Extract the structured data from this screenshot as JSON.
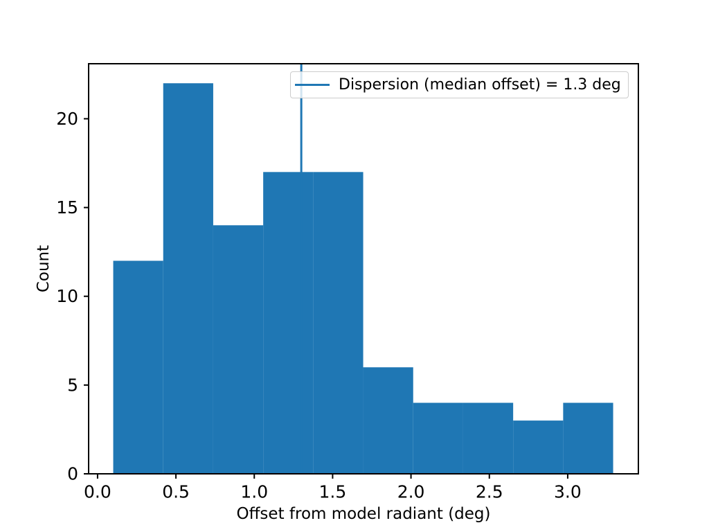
{
  "chart_data": {
    "type": "histogram",
    "title": "",
    "xlabel": "Offset from model radiant (deg)",
    "ylabel": "Count",
    "bin_edges": [
      0.1,
      0.419,
      0.738,
      1.057,
      1.376,
      1.695,
      2.014,
      2.333,
      2.652,
      2.971,
      3.29
    ],
    "counts": [
      12,
      22,
      14,
      17,
      17,
      6,
      4,
      4,
      3,
      4
    ],
    "bar_color": "#1f77b4",
    "vline": {
      "x": 1.3,
      "color": "#1f77b4",
      "label": "Dispersion (median offset) = 1.3 deg"
    },
    "xlim": [
      -0.057,
      3.451
    ],
    "ylim": [
      0,
      23.1
    ],
    "xticks": [
      0.0,
      0.5,
      1.0,
      1.5,
      2.0,
      2.5,
      3.0
    ],
    "xtick_labels": [
      "0.0",
      "0.5",
      "1.0",
      "1.5",
      "2.0",
      "2.5",
      "3.0"
    ],
    "yticks": [
      0,
      5,
      10,
      15,
      20
    ],
    "ytick_labels": [
      "0",
      "5",
      "10",
      "15",
      "20"
    ],
    "grid": false,
    "legend_position": "upper right",
    "axis_color": "#000000",
    "legend_border_color": "#cccccc",
    "background_color": "#ffffff"
  }
}
